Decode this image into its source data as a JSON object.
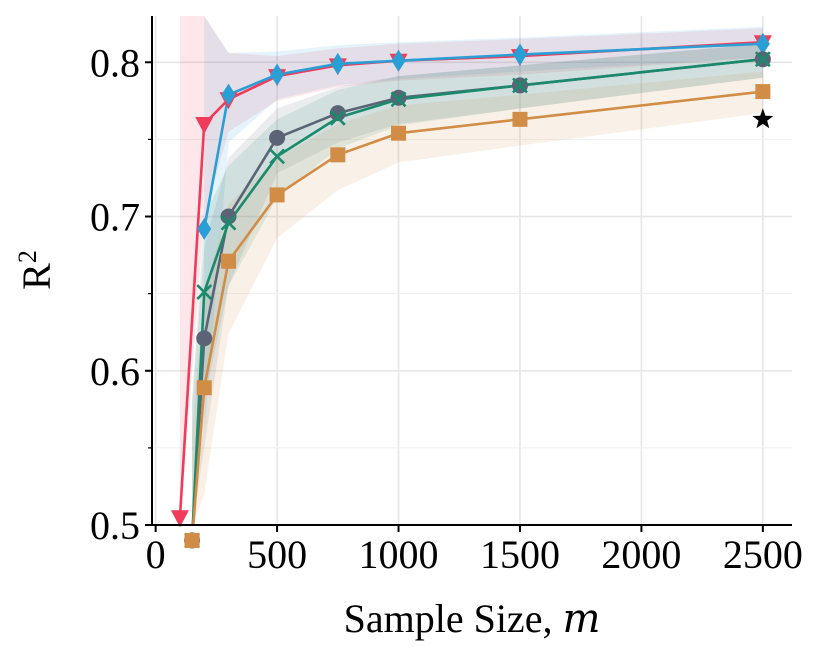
{
  "chart_data": {
    "type": "line",
    "title": "",
    "xlabel_prefix": "Sample Size, ",
    "xlabel_var": "m",
    "ylabel_base": "R",
    "ylabel_sup": "2",
    "xlim": [
      -15,
      2620
    ],
    "ylim": [
      0.5,
      0.83
    ],
    "xticks": [
      0,
      500,
      1000,
      1500,
      2000,
      2500
    ],
    "xtick_labels": [
      "0",
      "500",
      "1000",
      "1500",
      "2000",
      "2500"
    ],
    "yticks": [
      0.5,
      0.6,
      0.7,
      0.8
    ],
    "ytick_labels": [
      "0.5",
      "0.6",
      "0.7",
      "0.8"
    ],
    "grid": true,
    "legend": "none",
    "series": [
      {
        "name": "red-triangle",
        "color": "#f03b5a",
        "marker": "triangle-down",
        "x": [
          100,
          200,
          300,
          500,
          750,
          1000,
          1500,
          2500
        ],
        "y": [
          0.505,
          0.76,
          0.776,
          0.791,
          0.798,
          0.801,
          0.804,
          0.813
        ],
        "lower": [
          0.4,
          0.7,
          0.755,
          0.775,
          0.784,
          0.788,
          0.792,
          0.803
        ],
        "upper": [
          0.83,
          0.83,
          0.806,
          0.804,
          0.809,
          0.812,
          0.815,
          0.822
        ]
      },
      {
        "name": "blue-diamond",
        "color": "#2a9fd6",
        "marker": "diamond",
        "x": [
          200,
          300,
          500,
          750,
          1000,
          1500,
          2500
        ],
        "y": [
          0.692,
          0.779,
          0.792,
          0.799,
          0.801,
          0.805,
          0.812
        ],
        "lower": [
          0.56,
          0.748,
          0.776,
          0.785,
          0.789,
          0.794,
          0.803
        ],
        "upper": [
          0.83,
          0.806,
          0.807,
          0.811,
          0.813,
          0.816,
          0.823
        ]
      },
      {
        "name": "gray-circle",
        "color": "#5b6376",
        "marker": "circle",
        "x": [
          150,
          200,
          300,
          500,
          750,
          1000,
          1500,
          2500
        ],
        "y": [
          0.49,
          0.621,
          0.7,
          0.751,
          0.767,
          0.777,
          0.785,
          0.802
        ],
        "lower": [
          0.4,
          0.55,
          0.655,
          0.728,
          0.748,
          0.76,
          0.77,
          0.79
        ],
        "upper": [
          0.58,
          0.68,
          0.738,
          0.77,
          0.784,
          0.791,
          0.798,
          0.812
        ]
      },
      {
        "name": "green-x",
        "color": "#1a8a6c",
        "marker": "x",
        "x": [
          150,
          200,
          300,
          500,
          750,
          1000,
          1500,
          2500
        ],
        "y": [
          0.49,
          0.651,
          0.696,
          0.739,
          0.764,
          0.776,
          0.785,
          0.802
        ],
        "lower": [
          0.4,
          0.58,
          0.655,
          0.712,
          0.744,
          0.759,
          0.77,
          0.79
        ],
        "upper": [
          0.58,
          0.7,
          0.733,
          0.763,
          0.782,
          0.791,
          0.798,
          0.812
        ]
      },
      {
        "name": "orange-square",
        "color": "#d18d45",
        "marker": "square",
        "x": [
          150,
          200,
          300,
          500,
          750,
          1000,
          1500,
          2500
        ],
        "y": [
          0.49,
          0.589,
          0.671,
          0.714,
          0.74,
          0.754,
          0.763,
          0.781
        ],
        "lower": [
          0.4,
          0.52,
          0.624,
          0.686,
          0.717,
          0.735,
          0.746,
          0.767
        ],
        "upper": [
          0.56,
          0.65,
          0.708,
          0.738,
          0.76,
          0.772,
          0.779,
          0.794
        ]
      }
    ],
    "annotations": [
      {
        "name": "star",
        "marker": "star",
        "color": "#000000",
        "x": 2500,
        "y": 0.763
      }
    ]
  }
}
